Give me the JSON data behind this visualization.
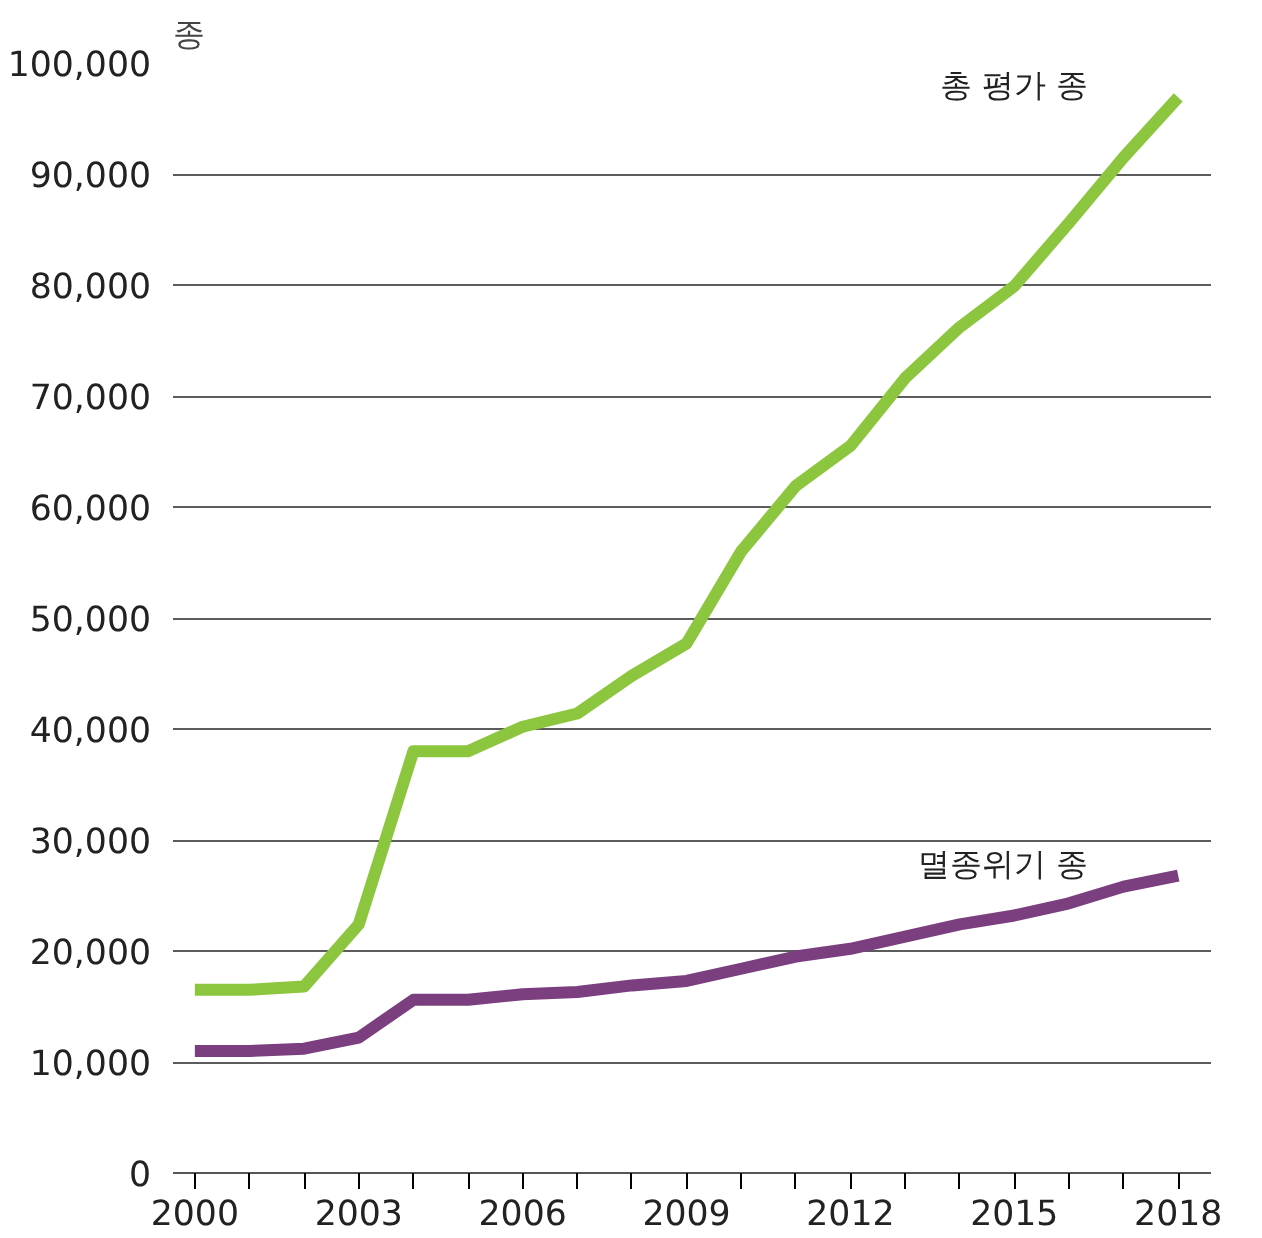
{
  "chart_data": {
    "type": "line",
    "ylabel": "종",
    "x": [
      2000,
      2001,
      2002,
      2003,
      2004,
      2005,
      2006,
      2007,
      2008,
      2009,
      2010,
      2011,
      2012,
      2013,
      2014,
      2015,
      2016,
      2017,
      2018
    ],
    "series": [
      {
        "name": "총 평가 종",
        "color": "#8cc63f",
        "values": [
          16500,
          16500,
          16800,
          22400,
          38000,
          38000,
          40200,
          41400,
          44800,
          47700,
          56000,
          61900,
          65500,
          71600,
          76200,
          79900,
          85600,
          91500,
          96900
        ]
      },
      {
        "name": "멸종위기 종",
        "color": "#7b3f7f",
        "values": [
          11000,
          11000,
          11200,
          12200,
          15600,
          15600,
          16100,
          16300,
          16900,
          17300,
          18400,
          19500,
          20200,
          21300,
          22400,
          23200,
          24300,
          25800,
          26800
        ]
      }
    ],
    "xlim": [
      1999.6,
      2018.6
    ],
    "ylim": [
      0,
      100000
    ],
    "xticks": [
      2000,
      {
        "value": 2001,
        "label": null
      },
      {
        "value": 2002,
        "label": null
      },
      2003,
      {
        "value": 2004,
        "label": null
      },
      {
        "value": 2005,
        "label": null
      },
      2006,
      {
        "value": 2007,
        "label": null
      },
      {
        "value": 2008,
        "label": null
      },
      2009,
      {
        "value": 2010,
        "label": null
      },
      {
        "value": 2011,
        "label": null
      },
      2012,
      {
        "value": 2013,
        "label": null
      },
      {
        "value": 2014,
        "label": null
      },
      2015,
      {
        "value": 2016,
        "label": null
      },
      {
        "value": 2017,
        "label": null
      },
      2018
    ],
    "yticks": [
      {
        "value": 0,
        "label": "0"
      },
      {
        "value": 10000,
        "label": "10,000"
      },
      {
        "value": 20000,
        "label": "20,000"
      },
      {
        "value": 30000,
        "label": "30,000"
      },
      {
        "value": 40000,
        "label": "40,000"
      },
      {
        "value": 50000,
        "label": "50,000"
      },
      {
        "value": 60000,
        "label": "60,000"
      },
      {
        "value": 70000,
        "label": "70,000"
      },
      {
        "value": 80000,
        "label": "80,000"
      },
      {
        "value": 90000,
        "label": "90,000"
      },
      {
        "value": 100000,
        "label": "100,000"
      }
    ],
    "grid": "y",
    "line_style": "solid",
    "marker": "none"
  }
}
